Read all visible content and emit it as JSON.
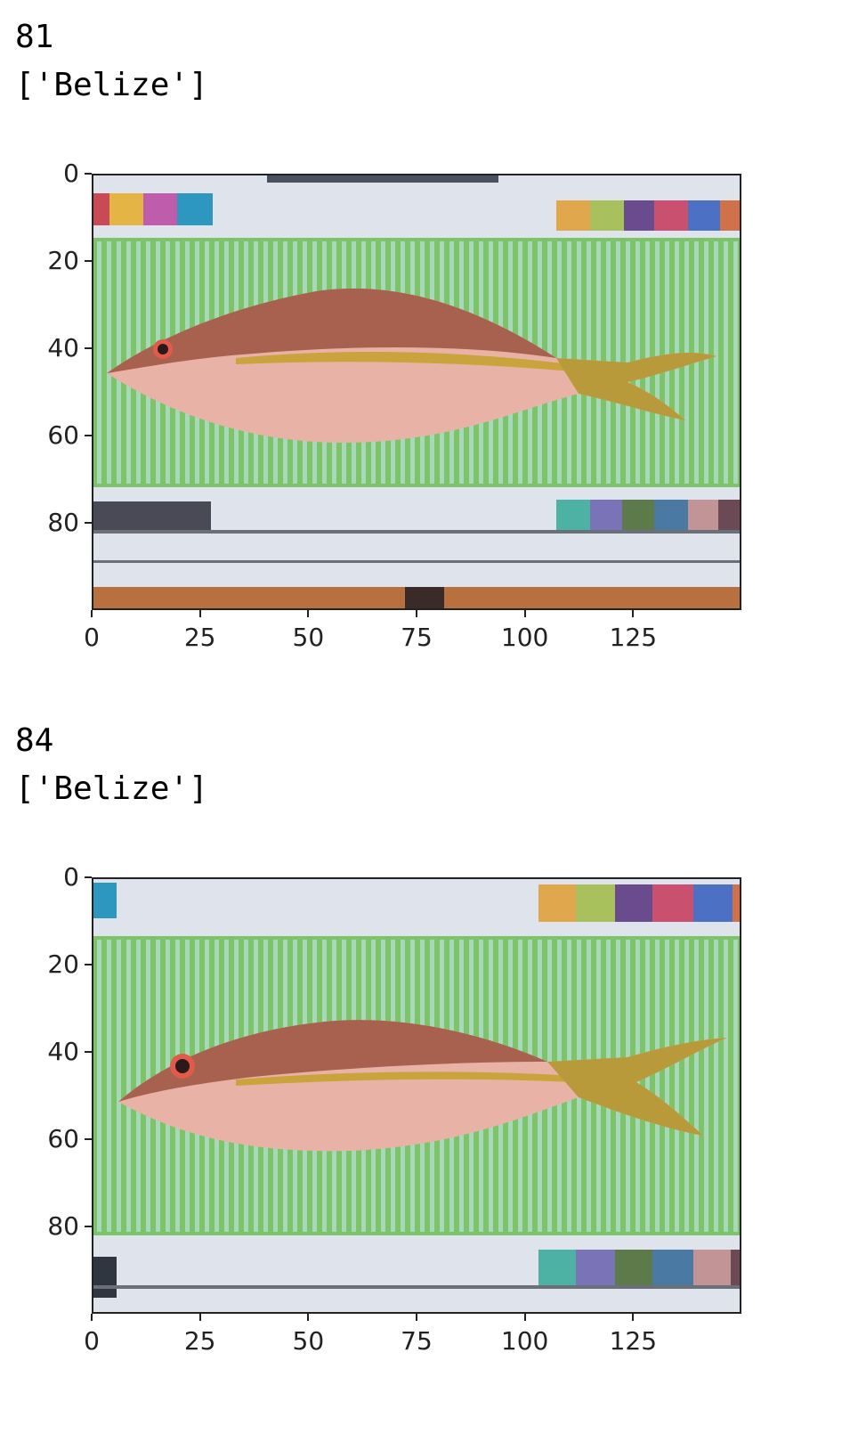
{
  "outputs": [
    {
      "index_text": "81",
      "label_text": "['Belize']",
      "image": {
        "name": "yellowtail-snapper-photo",
        "x_ticks": [
          "0",
          "25",
          "50",
          "75",
          "100",
          "125"
        ],
        "y_ticks": [
          "0",
          "20",
          "40",
          "60",
          "80"
        ],
        "x_tick_values": [
          0,
          25,
          50,
          75,
          100,
          125
        ],
        "y_tick_values": [
          0,
          20,
          40,
          60,
          80
        ],
        "x_range": [
          0,
          150
        ],
        "y_range": [
          0,
          100
        ],
        "colors": {
          "board_green": "#7dc36a",
          "board_stripe": "#a7d9b9",
          "panel": "#dfe3ec",
          "fish_body": "#e9b2a6",
          "fish_back": "#a8604f",
          "fish_stripe": "#c9a33b",
          "tail": "#b99a3a"
        }
      }
    },
    {
      "index_text": "84",
      "label_text": "['Belize']",
      "image": {
        "name": "yellowtail-snapper-photo",
        "x_ticks": [
          "0",
          "25",
          "50",
          "75",
          "100",
          "125"
        ],
        "y_ticks": [
          "0",
          "20",
          "40",
          "60",
          "80"
        ],
        "x_tick_values": [
          0,
          25,
          50,
          75,
          100,
          125
        ],
        "y_tick_values": [
          0,
          20,
          40,
          60,
          80
        ],
        "x_range": [
          0,
          150
        ],
        "y_range": [
          0,
          100
        ],
        "colors": {
          "board_green": "#7dc36a",
          "board_stripe": "#a7d9b9",
          "panel": "#dfe3ec",
          "fish_body": "#e9b2a6",
          "fish_back": "#a8604f",
          "fish_stripe": "#c9a33b",
          "tail": "#b99a3a"
        }
      }
    }
  ]
}
